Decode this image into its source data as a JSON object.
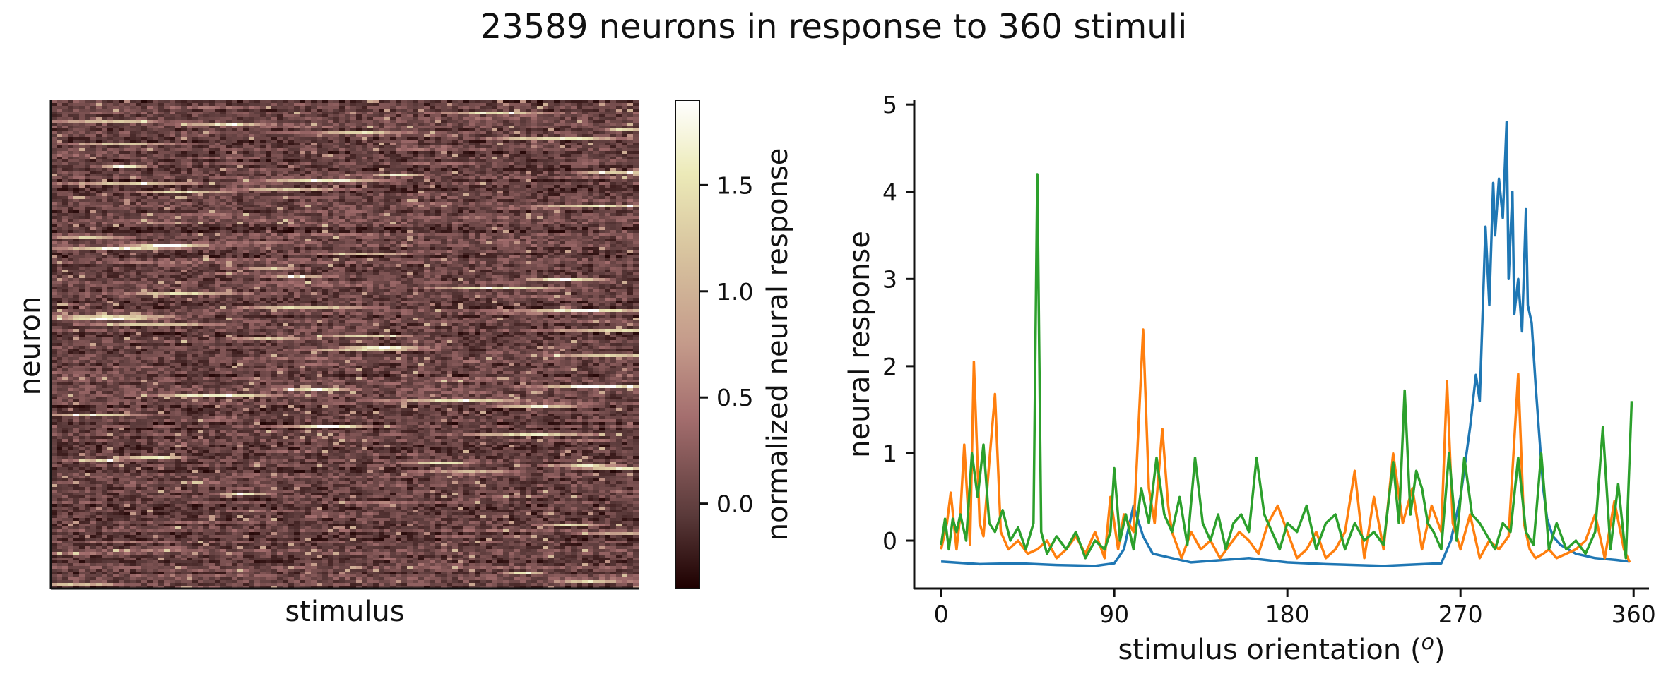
{
  "figure": {
    "title": "23589 neurons in response to 360 stimuli"
  },
  "chart_data": [
    {
      "type": "heatmap",
      "xlabel": "stimulus",
      "ylabel": "neuron",
      "colormap": "pink",
      "colorbar": {
        "label": "normalized neural response",
        "range": [
          -0.4,
          1.9
        ],
        "ticks": [
          0.0,
          0.5,
          1.0,
          1.5
        ],
        "tick_labels": [
          "0.0",
          "0.5",
          "1.0",
          "1.5"
        ]
      },
      "grid": false
    },
    {
      "type": "line",
      "xlabel": "stimulus orientation (o)",
      "ylabel": "neural response",
      "xlim": [
        -14,
        368
      ],
      "ylim": [
        -0.55,
        5.05
      ],
      "xticks": [
        0,
        90,
        180,
        270,
        360
      ],
      "xtick_labels": [
        "0",
        "90",
        "180",
        "270",
        "360"
      ],
      "yticks": [
        0,
        1,
        2,
        3,
        4,
        5
      ],
      "ytick_labels": [
        "0",
        "1",
        "2",
        "3",
        "4",
        "5"
      ],
      "grid": false,
      "series": [
        {
          "color": "#1f77b4",
          "x": [
            0,
            20,
            40,
            60,
            80,
            90,
            95,
            100,
            105,
            110,
            130,
            160,
            180,
            200,
            230,
            260,
            265,
            270,
            275,
            278,
            280,
            283,
            285,
            287,
            288,
            290,
            292,
            294,
            295,
            297,
            298,
            300,
            302,
            304,
            305,
            307,
            309,
            311,
            313,
            315,
            318,
            322,
            330,
            340,
            350,
            358
          ],
          "y": [
            -0.24,
            -0.27,
            -0.26,
            -0.28,
            -0.29,
            -0.26,
            -0.1,
            0.4,
            0.05,
            -0.15,
            -0.25,
            -0.2,
            -0.25,
            -0.27,
            -0.29,
            -0.26,
            0.0,
            0.5,
            1.3,
            1.9,
            1.6,
            3.6,
            2.7,
            4.1,
            3.5,
            4.15,
            3.7,
            4.8,
            3.0,
            4.0,
            2.6,
            3.0,
            2.4,
            3.8,
            2.7,
            2.5,
            1.8,
            1.2,
            0.6,
            0.25,
            0.05,
            -0.05,
            -0.15,
            -0.2,
            -0.22,
            -0.24
          ]
        },
        {
          "color": "#ff7f0e",
          "x": [
            0,
            3,
            5,
            8,
            10,
            12,
            15,
            17,
            20,
            22,
            25,
            28,
            31,
            35,
            40,
            45,
            50,
            55,
            60,
            65,
            70,
            75,
            80,
            85,
            88,
            92,
            95,
            100,
            105,
            108,
            111,
            115,
            118,
            120,
            125,
            130,
            135,
            140,
            145,
            150,
            155,
            160,
            165,
            170,
            175,
            180,
            185,
            190,
            195,
            200,
            205,
            210,
            215,
            220,
            225,
            230,
            235,
            240,
            245,
            250,
            255,
            260,
            263,
            266,
            270,
            275,
            280,
            285,
            290,
            295,
            300,
            303,
            306,
            309,
            313,
            316,
            320,
            325,
            330,
            335,
            340,
            345,
            350,
            355,
            358
          ],
          "y": [
            -0.1,
            0.2,
            0.55,
            -0.1,
            0.3,
            1.1,
            -0.05,
            2.05,
            0.2,
            0.05,
            0.9,
            1.68,
            0.1,
            -0.1,
            0.0,
            -0.15,
            -0.1,
            0.0,
            -0.2,
            -0.1,
            0.05,
            -0.15,
            0.1,
            -0.2,
            0.5,
            -0.1,
            0.3,
            0.1,
            2.42,
            0.6,
            0.2,
            1.28,
            0.4,
            0.1,
            -0.2,
            0.1,
            -0.1,
            0.0,
            -0.2,
            -0.05,
            0.1,
            0.0,
            -0.15,
            0.2,
            0.4,
            0.1,
            -0.2,
            -0.1,
            0.1,
            -0.2,
            -0.1,
            0.1,
            0.8,
            -0.2,
            0.5,
            -0.1,
            1.0,
            0.2,
            0.6,
            -0.1,
            0.4,
            0.1,
            1.83,
            0.2,
            -0.1,
            0.3,
            -0.2,
            0.0,
            -0.1,
            0.05,
            1.91,
            0.2,
            -0.1,
            -0.2,
            -0.15,
            -0.1,
            -0.2,
            -0.15,
            -0.1,
            0.0,
            0.3,
            -0.2,
            0.45,
            -0.1,
            -0.25
          ]
        },
        {
          "color": "#2ca02c",
          "x": [
            0,
            2,
            4,
            6,
            8,
            10,
            13,
            16,
            19,
            22,
            25,
            28,
            32,
            36,
            40,
            44,
            48,
            50,
            52,
            55,
            60,
            65,
            70,
            75,
            80,
            85,
            88,
            90,
            93,
            96,
            100,
            104,
            108,
            112,
            116,
            120,
            124,
            128,
            132,
            136,
            140,
            144,
            148,
            152,
            156,
            160,
            164,
            168,
            172,
            176,
            180,
            185,
            190,
            195,
            200,
            205,
            210,
            215,
            220,
            225,
            230,
            235,
            238,
            241,
            244,
            247,
            250,
            253,
            256,
            260,
            264,
            268,
            272,
            276,
            280,
            284,
            288,
            292,
            296,
            300,
            304,
            308,
            312,
            316,
            320,
            325,
            330,
            335,
            340,
            344,
            348,
            352,
            356,
            359
          ],
          "y": [
            -0.05,
            0.25,
            -0.1,
            0.25,
            0.1,
            0.3,
            0.0,
            1.0,
            0.5,
            1.1,
            0.2,
            0.1,
            0.35,
            0.0,
            0.15,
            -0.1,
            0.2,
            4.2,
            0.1,
            -0.15,
            0.05,
            -0.1,
            0.1,
            -0.2,
            0.0,
            -0.1,
            0.1,
            0.83,
            0.0,
            0.3,
            -0.1,
            0.6,
            0.2,
            0.95,
            0.3,
            0.1,
            0.5,
            -0.05,
            0.95,
            0.2,
            0.0,
            0.3,
            -0.1,
            0.2,
            0.3,
            0.1,
            0.95,
            0.3,
            0.1,
            -0.1,
            0.2,
            0.1,
            0.4,
            -0.1,
            0.2,
            0.3,
            -0.1,
            0.2,
            0.0,
            0.1,
            -0.05,
            0.9,
            0.2,
            1.72,
            0.3,
            0.8,
            0.6,
            0.2,
            0.1,
            -0.1,
            1.0,
            0.0,
            0.95,
            0.3,
            0.2,
            0.05,
            -0.1,
            0.2,
            0.1,
            0.95,
            0.1,
            -0.05,
            1.0,
            -0.1,
            0.2,
            -0.1,
            0.0,
            -0.15,
            0.1,
            1.3,
            -0.1,
            0.65,
            -0.2,
            1.6
          ]
        }
      ]
    }
  ]
}
